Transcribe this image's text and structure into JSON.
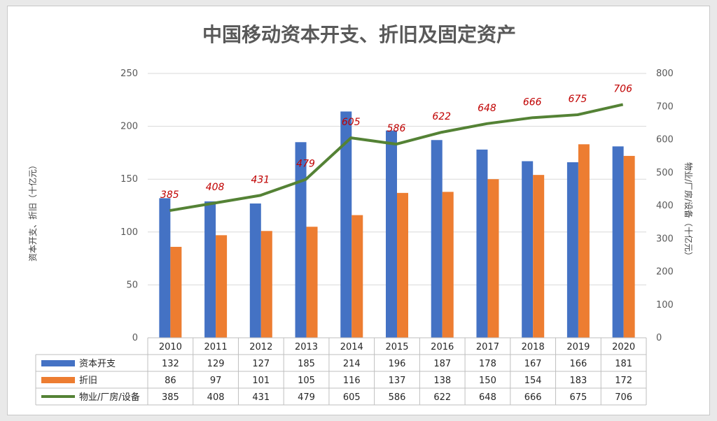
{
  "chart_data": {
    "type": "bar",
    "title": "中国移动资本开支、折旧及固定资产",
    "y_left_label": "资本开支、折旧（十亿元）",
    "y_right_label": "物业/厂房/设备（十亿元）",
    "y_left_lim": [
      0,
      250
    ],
    "y_left_ticks": [
      "0",
      "50",
      "100",
      "150",
      "200",
      "250"
    ],
    "y_right_lim": [
      0,
      800
    ],
    "y_right_ticks": [
      "0",
      "100",
      "200",
      "300",
      "400",
      "500",
      "600",
      "700",
      "800"
    ],
    "categories": [
      "2010",
      "2011",
      "2012",
      "2013",
      "2014",
      "2015",
      "2016",
      "2017",
      "2018",
      "2019",
      "2020"
    ],
    "series": [
      {
        "name": "资本开支",
        "type": "bar",
        "axis": "left",
        "color": "#4472c4",
        "values": [
          132,
          129,
          127,
          185,
          214,
          196,
          187,
          178,
          167,
          166,
          181
        ]
      },
      {
        "name": "折旧",
        "type": "bar",
        "axis": "left",
        "color": "#ed7d31",
        "values": [
          86,
          97,
          101,
          105,
          116,
          137,
          138,
          150,
          154,
          183,
          172
        ]
      },
      {
        "name": "物业/厂房/设备",
        "type": "line",
        "axis": "right",
        "color": "#548235",
        "values": [
          385,
          408,
          431,
          479,
          605,
          586,
          622,
          648,
          666,
          675,
          706
        ]
      }
    ],
    "data_labels_color": "#c00000",
    "legend": "data-table"
  }
}
